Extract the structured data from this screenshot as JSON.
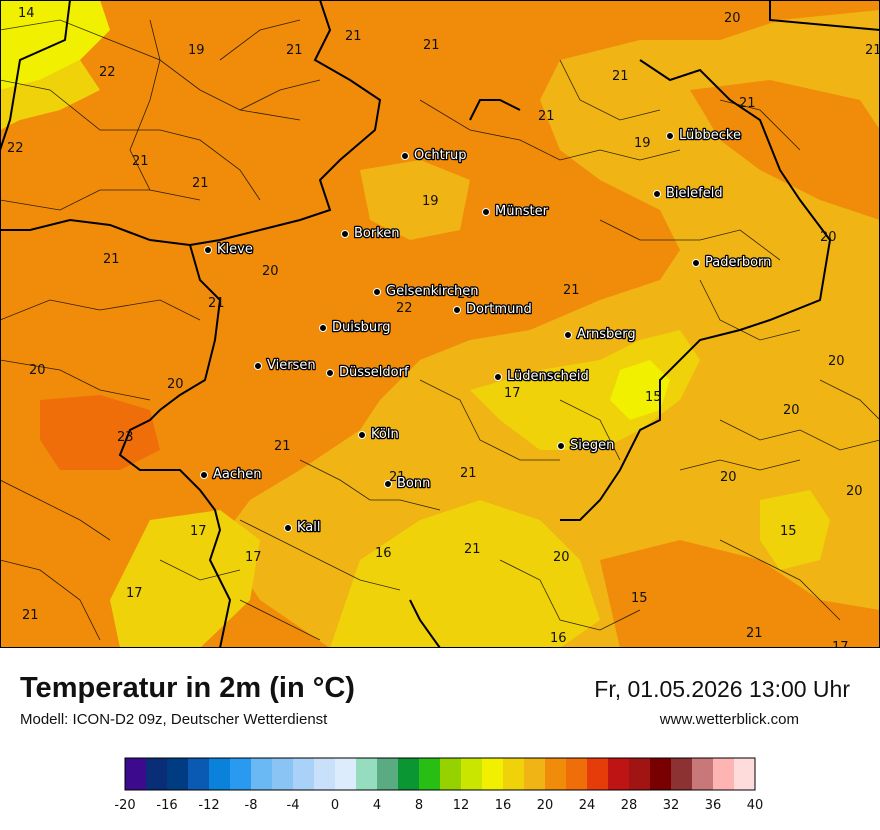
{
  "title": "Temperatur in 2m (in °C)",
  "model": "Modell: ICON-D2 09z, Deutscher Wetterdienst",
  "datetime": "Fr, 01.05.2026 13:00 Uhr",
  "website": "www.wetterblick.com",
  "cities": [
    {
      "name": "Ochtrup"
    },
    {
      "name": "Lübbecke"
    },
    {
      "name": "Bielefeld"
    },
    {
      "name": "Münster"
    },
    {
      "name": "Kleve"
    },
    {
      "name": "Borken"
    },
    {
      "name": "Paderborn"
    },
    {
      "name": "Gelsenkirchen"
    },
    {
      "name": "Dortmund"
    },
    {
      "name": "Duisburg"
    },
    {
      "name": "Arnsberg"
    },
    {
      "name": "Viersen"
    },
    {
      "name": "Düsseldorf"
    },
    {
      "name": "Lüdenscheid"
    },
    {
      "name": "Köln"
    },
    {
      "name": "Siegen"
    },
    {
      "name": "Aachen"
    },
    {
      "name": "Bonn"
    },
    {
      "name": "Kall"
    }
  ],
  "temperatures": [
    "14",
    "20",
    "19",
    "21",
    "21",
    "21",
    "22",
    "21",
    "21",
    "19",
    "22",
    "21",
    "21",
    "21",
    "19",
    "21",
    "20",
    "20",
    "21",
    "21",
    "22",
    "20",
    "21",
    "20",
    "20",
    "17",
    "15",
    "20",
    "23",
    "21",
    "20",
    "21",
    "21",
    "20",
    "17",
    "17",
    "16",
    "21",
    "15",
    "20",
    "15",
    "17",
    "16",
    "21",
    "21",
    "17",
    "20"
  ],
  "legend": {
    "ticks": [
      "-20",
      "-16",
      "-12",
      "-8",
      "-4",
      "0",
      "4",
      "8",
      "12",
      "16",
      "20",
      "24",
      "28",
      "32",
      "36",
      "40"
    ],
    "colors": [
      "#3c0a8c",
      "#0a2d78",
      "#003c82",
      "#0a5ab4",
      "#0a82dc",
      "#2a9af0",
      "#6ab8f4",
      "#8ac4f4",
      "#aad2f8",
      "#c8e0fa",
      "#dcecfc",
      "#96dcbe",
      "#5aaa82",
      "#0a9632",
      "#28be14",
      "#96d200",
      "#c8e600",
      "#f0f000",
      "#f0d20a",
      "#f0b414",
      "#f08c0a",
      "#f06e0a",
      "#e63c0a",
      "#be1414",
      "#a01414",
      "#780000",
      "#8c3232",
      "#c87878",
      "#ffb4b4",
      "#ffdcdc"
    ]
  }
}
